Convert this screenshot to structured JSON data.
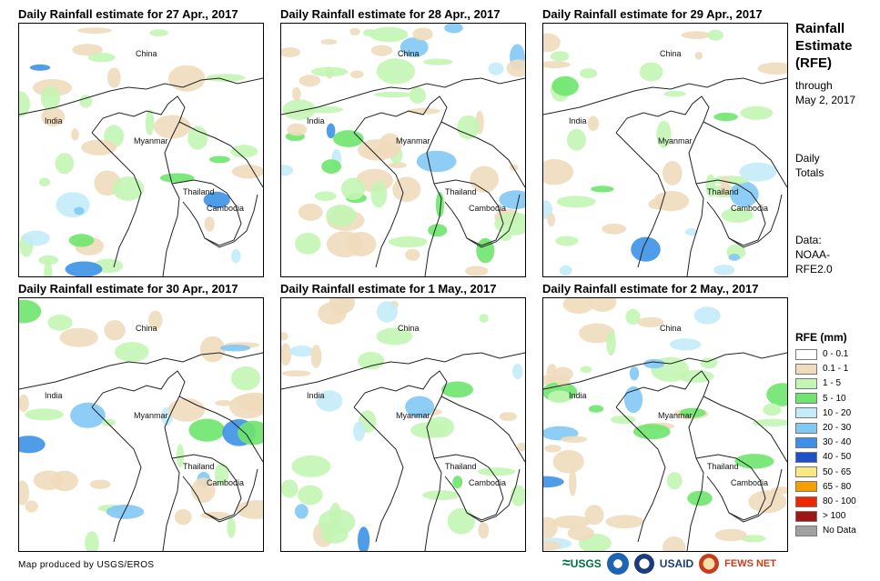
{
  "panels": [
    {
      "title": "Daily Rainfall estimate for 27 Apr., 2017"
    },
    {
      "title": "Daily Rainfall estimate for 28 Apr., 2017"
    },
    {
      "title": "Daily Rainfall estimate for 29 Apr., 2017"
    },
    {
      "title": "Daily Rainfall estimate for 30 Apr., 2017"
    },
    {
      "title": "Daily Rainfall estimate for 1 May., 2017"
    },
    {
      "title": "Daily Rainfall estimate for 2 May., 2017"
    }
  ],
  "map_labels": {
    "china": "China",
    "india": "India",
    "myanmar": "Myanmar",
    "thailand": "Thailand",
    "cambodia": "Cambodia"
  },
  "sidebar": {
    "title_line1": "Rainfall",
    "title_line2": "Estimate",
    "title_line3": "(RFE)",
    "through_line1": "through",
    "through_line2": "May 2, 2017",
    "totals_line1": "Daily",
    "totals_line2": "Totals",
    "data_line1": "Data:",
    "data_line2": "NOAA-",
    "data_line3": "RFE2.0"
  },
  "legend": {
    "title": "RFE (mm)",
    "items": [
      {
        "label": "0 - 0.1",
        "color": "#ffffff"
      },
      {
        "label": "0.1 - 1",
        "color": "#efdcbd"
      },
      {
        "label": "1 - 5",
        "color": "#c3f5b4"
      },
      {
        "label": "5 - 10",
        "color": "#6ee56e"
      },
      {
        "label": "10 - 20",
        "color": "#c3ecfa"
      },
      {
        "label": "20 - 30",
        "color": "#82c8f5"
      },
      {
        "label": "30 - 40",
        "color": "#3c91e6"
      },
      {
        "label": "40 - 50",
        "color": "#1e50c8"
      },
      {
        "label": "50 - 65",
        "color": "#fae682"
      },
      {
        "label": "65 - 80",
        "color": "#f5a000"
      },
      {
        "label": "80 - 100",
        "color": "#f02800"
      },
      {
        "label": "> 100",
        "color": "#a01414"
      },
      {
        "label": "No Data",
        "color": "#a0a0a0"
      }
    ]
  },
  "credit": "Map produced by USGS/EROS",
  "logos": {
    "usgs": "USGS",
    "usaid": "USAID",
    "fewsnet": "FEWS NET"
  }
}
